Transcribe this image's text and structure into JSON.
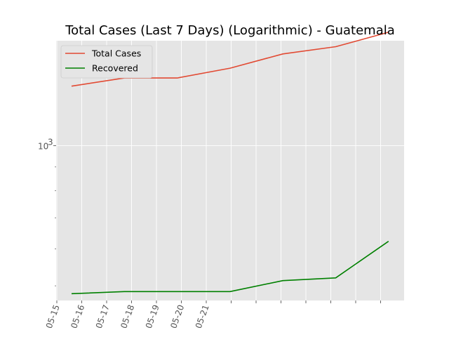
{
  "chart_data": {
    "type": "line",
    "title": "Total Cases (Last 7 Days) (Logarithmic) - Guatemala",
    "xlabel": "",
    "ylabel": "",
    "yscale": "log",
    "ylim": [
      465,
      1680
    ],
    "grid": true,
    "legend_position": "top-left",
    "x_ticks": [
      "05-15",
      "05-16",
      "05-17",
      "05-18",
      "05-19",
      "05-20",
      "05-21"
    ],
    "y_ticks": [
      {
        "value": 1000,
        "label": "10",
        "sup": "3"
      }
    ],
    "x": [
      "05-15",
      "05-16",
      "05-17",
      "05-18",
      "05-19",
      "05-20",
      "05-21"
    ],
    "series": [
      {
        "name": "Total Cases",
        "color": "#e24a33",
        "values": [
          1342,
          1397,
          1397,
          1467,
          1574,
          1631,
          1752
        ]
      },
      {
        "name": "Recovered",
        "color": "#008000",
        "values": [
          481,
          486,
          486,
          486,
          513,
          520,
          623
        ]
      }
    ]
  }
}
